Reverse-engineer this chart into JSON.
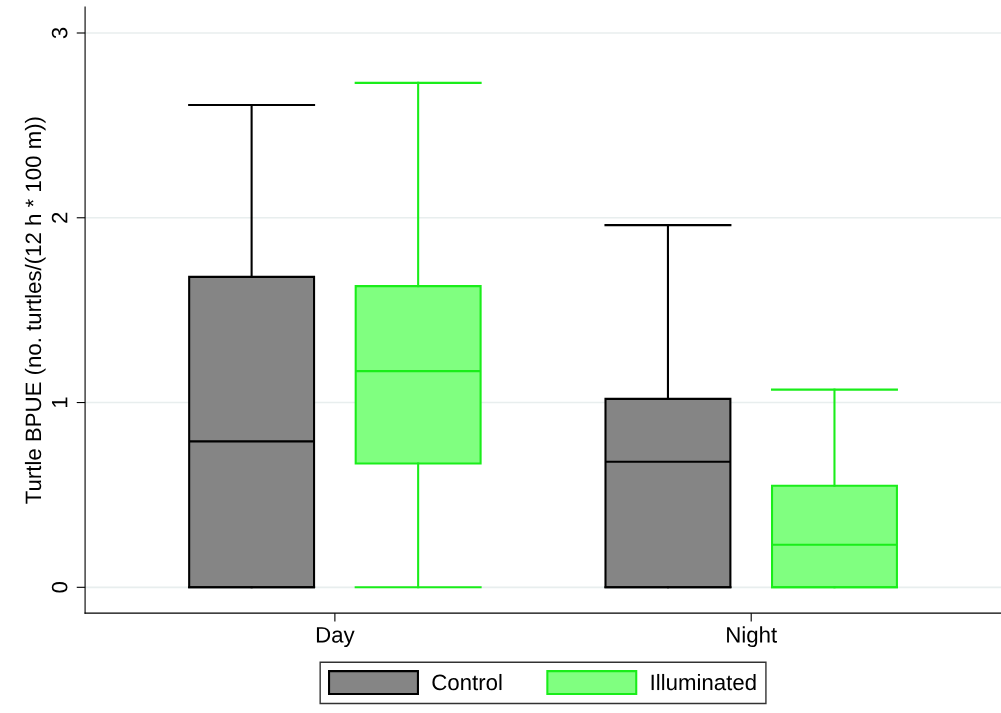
{
  "chart_data": {
    "type": "box",
    "ylabel": "Turtle BPUE (no. turtles/(12 h * 100 m))",
    "categories": [
      "Day",
      "Night"
    ],
    "series": [
      {
        "name": "Control",
        "color": "#858585",
        "boxes": [
          {
            "low": 0,
            "q1": 0,
            "median": 0.79,
            "q3": 1.68,
            "high": 2.61
          },
          {
            "low": 0,
            "q1": 0,
            "median": 0.68,
            "q3": 1.02,
            "high": 1.96
          }
        ]
      },
      {
        "name": "Illuminated",
        "color": "#80ff80",
        "boxes": [
          {
            "low": 0,
            "q1": 0.67,
            "median": 1.17,
            "q3": 1.63,
            "high": 2.73
          },
          {
            "low": 0,
            "q1": 0,
            "median": 0.23,
            "q3": 0.55,
            "high": 1.07
          }
        ]
      }
    ],
    "ylim": [
      -0.14,
      3.14
    ],
    "yticks": [
      0,
      1,
      2,
      3
    ],
    "grid": "y",
    "legend": "bottom"
  }
}
